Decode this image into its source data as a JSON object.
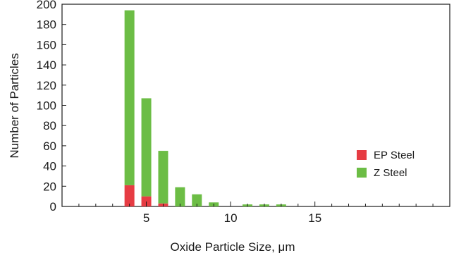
{
  "chart_data": {
    "type": "bar",
    "stacked": true,
    "title": "",
    "xlabel": "Oxide Particle Size, μm",
    "ylabel": "Number of Particles",
    "xlim": [
      0,
      23
    ],
    "ylim": [
      0,
      200
    ],
    "x_ticks": [
      5,
      10,
      15
    ],
    "y_ticks": [
      0,
      20,
      40,
      60,
      80,
      100,
      120,
      140,
      160,
      180,
      200
    ],
    "grid": false,
    "legend_position": "right",
    "x": [
      4,
      5,
      6,
      7,
      8,
      9,
      10,
      11,
      12,
      13
    ],
    "series": [
      {
        "name": "EP Steel",
        "color": "#e63c43",
        "values": [
          21,
          10,
          3,
          0,
          0,
          0,
          0,
          0,
          0,
          0
        ]
      },
      {
        "name": "Z Steel",
        "color": "#6cbd45",
        "values": [
          173,
          97,
          52,
          19,
          12,
          4,
          0,
          2,
          2,
          2
        ]
      }
    ]
  }
}
